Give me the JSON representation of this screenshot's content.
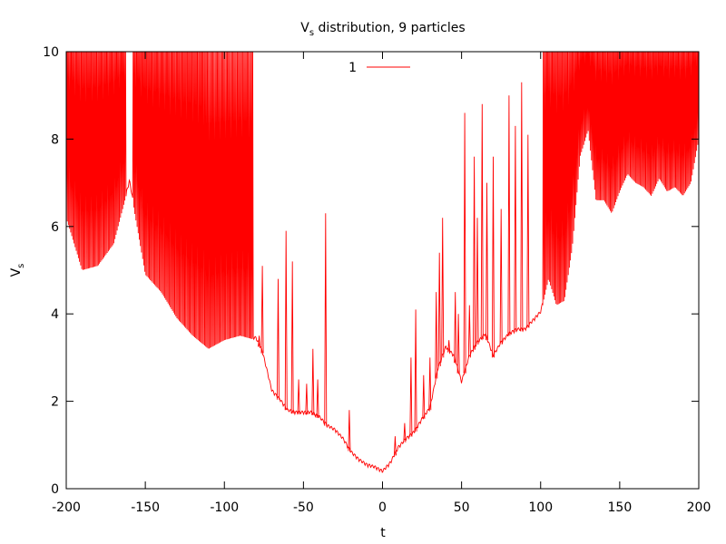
{
  "chart_data": {
    "type": "line",
    "title_main": "V",
    "title_sub": "s",
    "title_rest": " distribution, 9 particles",
    "xlabel": "t",
    "ylabel_main": "V",
    "ylabel_sub": "s",
    "xlim": [
      -200,
      200
    ],
    "ylim": [
      0,
      10
    ],
    "xticks": [
      -200,
      -150,
      -100,
      -50,
      0,
      50,
      100,
      150,
      200
    ],
    "yticks": [
      0,
      2,
      4,
      6,
      8,
      10
    ],
    "grid": false,
    "legend_position": "top-center",
    "series": [
      {
        "name": "1",
        "color": "#ff0000",
        "envelope_x": [
          -200,
          -190,
          -180,
          -170,
          -160,
          -150,
          -140,
          -130,
          -120,
          -110,
          -100,
          -90,
          -80,
          -76,
          -70,
          -65,
          -60,
          -55,
          -50,
          -45,
          -40,
          -35,
          -30,
          -25,
          -20,
          -15,
          -10,
          -5,
          0,
          5,
          10,
          15,
          20,
          25,
          30,
          35,
          40,
          45,
          50,
          55,
          60,
          65,
          70,
          75,
          80,
          85,
          90,
          95,
          100,
          105,
          110,
          115,
          120,
          125,
          130,
          135,
          140,
          145,
          150,
          155,
          160,
          165,
          170,
          175,
          180,
          185,
          190,
          195,
          200
        ],
        "envelope_min": [
          6.2,
          5.0,
          5.1,
          5.6,
          7.0,
          4.9,
          4.5,
          3.9,
          3.5,
          3.2,
          3.4,
          3.5,
          3.4,
          3.1,
          2.2,
          2.0,
          1.75,
          1.7,
          1.7,
          1.7,
          1.6,
          1.4,
          1.3,
          1.1,
          0.8,
          0.62,
          0.5,
          0.45,
          0.35,
          0.55,
          0.9,
          1.1,
          1.25,
          1.55,
          1.8,
          2.7,
          3.2,
          3.0,
          2.4,
          3.0,
          3.3,
          3.5,
          3.0,
          3.3,
          3.5,
          3.6,
          3.6,
          3.8,
          4.0,
          4.8,
          4.2,
          4.3,
          5.5,
          7.6,
          8.2,
          6.6,
          6.6,
          6.3,
          6.8,
          7.2,
          7.0,
          6.9,
          6.7,
          7.1,
          6.8,
          6.9,
          6.7,
          7.0,
          8.0
        ],
        "spike_x": [
          -78,
          -76,
          -66,
          -61,
          -57,
          -53,
          -48,
          -44,
          -41,
          -36,
          -21,
          8,
          14,
          18,
          21,
          26,
          30,
          34,
          36,
          38,
          42,
          46,
          48,
          52,
          55,
          58,
          60,
          63,
          66,
          70,
          75,
          80,
          84,
          88,
          92
        ],
        "spike_y": [
          3.5,
          5.1,
          4.8,
          5.9,
          5.2,
          2.5,
          2.4,
          3.2,
          2.5,
          6.3,
          1.8,
          1.2,
          1.5,
          3.0,
          4.1,
          2.6,
          3.0,
          4.5,
          5.4,
          6.2,
          3.4,
          4.5,
          4.0,
          8.6,
          4.2,
          7.6,
          6.2,
          8.8,
          7.0,
          7.6,
          6.4,
          9.0,
          8.3,
          9.3,
          8.1
        ],
        "dense_bands": [
          [
            -200,
            -162,
            10.0
          ],
          [
            -158,
            -112,
            10.0
          ],
          [
            -112,
            -82,
            9.5
          ],
          [
            101,
            126,
            10.0
          ],
          [
            126,
            200,
            10.0
          ]
        ]
      }
    ]
  }
}
